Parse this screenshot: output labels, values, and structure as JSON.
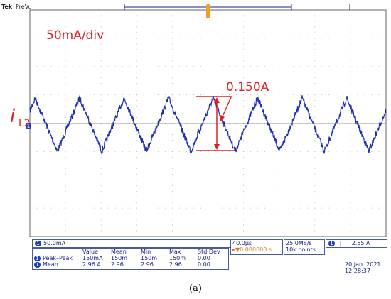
{
  "header": {
    "brand": "Tek",
    "mode": "PreVu"
  },
  "annotations": {
    "scale": "50mA/div",
    "amplitude": "0.150A",
    "signal_main": "i",
    "signal_sub": "L2"
  },
  "channel": "1",
  "channel_scale": "50.0mA",
  "measurements": {
    "headers": [
      "Value",
      "Mean",
      "Min",
      "Max",
      "Std Dev"
    ],
    "rows": [
      {
        "label": "Peak–Peak",
        "cells": [
          "150mA",
          "150m",
          "150m",
          "150m",
          "0.00"
        ]
      },
      {
        "label": "Mean",
        "cells": [
          "2.96 A",
          "2.96",
          "2.96",
          "2.96",
          "0.00"
        ]
      }
    ]
  },
  "timebase": {
    "scale": "40.0µs",
    "position": "▸▼0.000000 s"
  },
  "acquisition": {
    "rate": "25.0MS/s",
    "points": "10k points"
  },
  "trigger": {
    "level": "2.55 A"
  },
  "datetime": {
    "date": "20 Jan  2021",
    "time": "12:28:37"
  },
  "caption": "(a)"
}
